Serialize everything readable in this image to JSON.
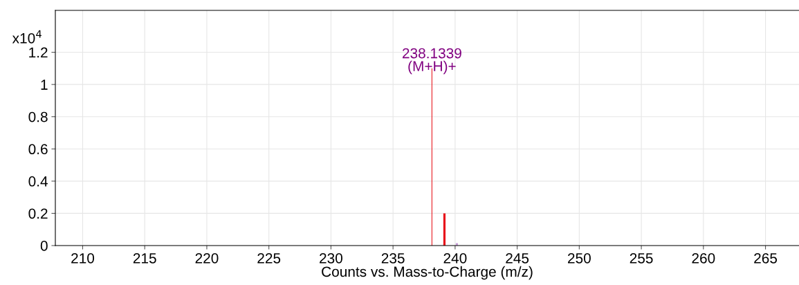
{
  "chart_data": {
    "type": "bar",
    "xlabel": "Counts vs. Mass-to-Charge (m/z)",
    "series": [
      {
        "color": "#e8141c",
        "x": [
          238.1339,
          239.14
        ],
        "values": [
          1.1,
          0.2
        ]
      },
      {
        "color": "#c8a0d8",
        "x": [
          240.14
        ],
        "values": [
          0.015
        ]
      }
    ],
    "xlim": [
      207.8,
      267.7
    ],
    "xticks": [
      210,
      215,
      220,
      225,
      230,
      235,
      240,
      245,
      250,
      255,
      260,
      265
    ],
    "ylim": [
      0,
      1.46
    ],
    "yticks": [
      0,
      0.2,
      0.4,
      0.6,
      0.8,
      1,
      1.2
    ],
    "annotations": [
      {
        "text": "238.1339\n(M+H)+",
        "x": 238.1339,
        "y": 1.1
      },
      "x10$^{4}$"
    ],
    "grid": true,
    "legend": false
  }
}
